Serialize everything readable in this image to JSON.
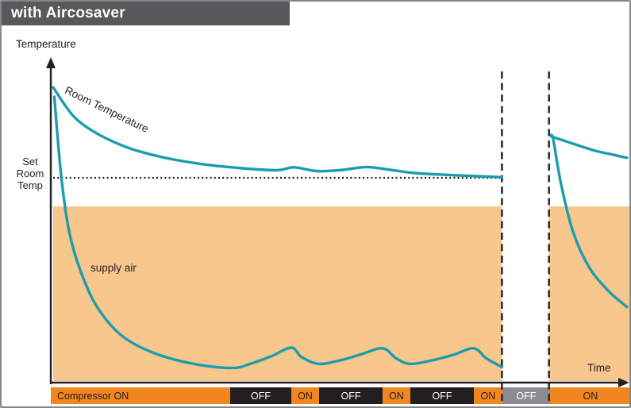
{
  "title": "with Aircosaver",
  "labels": {
    "y_axis": "Temperature",
    "x_axis": "Time",
    "set_point": "Set\nRoom\nTemp",
    "room_series": "Room Temperature",
    "supply_series": "supply air"
  },
  "colors": {
    "curve_teal": "#1B9DAD",
    "cooling_fill": "#F7C78E",
    "compressor_on": "#F0861F",
    "compressor_off": "#231F20",
    "compressor_idle": "#8A8D90",
    "titlebar_bg": "#57585A",
    "axis": "#231F20"
  },
  "chart_data": {
    "type": "line",
    "title": "with Aircosaver",
    "xlabel": "Time",
    "ylabel": "Temperature",
    "axis_note": "qualitative axes, no numeric ticks; t and T are 0-100 relative units",
    "set_point": {
      "label": "Set Room Temp",
      "T": 64.5,
      "t_range": [
        0,
        78.2
      ]
    },
    "cooling_zone": {
      "top_T": 55.5,
      "t_regions": [
        [
          0,
          78.2
        ],
        [
          86.4,
          100.4
        ]
      ]
    },
    "interruptions_t": [
      78.2,
      86.4
    ],
    "series": [
      {
        "name": "Room Temperature",
        "segments": [
          [
            [
              0,
              93
            ],
            [
              3.5,
              84
            ],
            [
              7.6,
              78.5
            ],
            [
              13,
              74
            ],
            [
              19,
              71
            ],
            [
              26,
              68.8
            ],
            [
              33,
              67.5
            ],
            [
              39,
              66.9
            ],
            [
              42,
              67.8
            ],
            [
              46,
              66.6
            ],
            [
              50.5,
              67.0
            ],
            [
              54.5,
              67.9
            ],
            [
              58,
              67.2
            ],
            [
              63,
              66.0
            ],
            [
              69,
              65.4
            ],
            [
              74,
              65.0
            ],
            [
              78.2,
              64.7
            ]
          ],
          [
            [
              86.8,
              77.5
            ],
            [
              89,
              76.2
            ],
            [
              91,
              75.0
            ],
            [
              94.5,
              73.0
            ],
            [
              97.5,
              71.8
            ],
            [
              100,
              70.8
            ]
          ]
        ]
      },
      {
        "name": "supply air",
        "segments": [
          [
            [
              0.2,
              90
            ],
            [
              1.4,
              65
            ],
            [
              2.8,
              47.5
            ],
            [
              4.8,
              35
            ],
            [
              7.6,
              24
            ],
            [
              11.8,
              15
            ],
            [
              17.3,
              9.5
            ],
            [
              24.2,
              6
            ],
            [
              31.1,
              4.6
            ],
            [
              34.5,
              6
            ],
            [
              38,
              8.3
            ],
            [
              41.5,
              11
            ],
            [
              43.3,
              8
            ],
            [
              46.3,
              5.9
            ],
            [
              50,
              7
            ],
            [
              53.5,
              8.8
            ],
            [
              57.4,
              10.8
            ],
            [
              59.8,
              7.6
            ],
            [
              62.2,
              5.9
            ],
            [
              66,
              7
            ],
            [
              69.8,
              8.8
            ],
            [
              73.3,
              10.8
            ],
            [
              75.5,
              7.6
            ],
            [
              78.2,
              4.9
            ]
          ],
          [
            [
              86.8,
              78
            ],
            [
              87.2,
              76
            ],
            [
              88.5,
              62.5
            ],
            [
              90.6,
              47.5
            ],
            [
              93.4,
              36.3
            ],
            [
              96.8,
              28.8
            ],
            [
              100,
              23.8
            ]
          ]
        ]
      }
    ],
    "compressor_timeline": [
      {
        "label": "Compressor ON",
        "state": "on",
        "width_pct": 30.92,
        "align": "left"
      },
      {
        "label": "OFF",
        "state": "off",
        "width_pct": 10.53
      },
      {
        "label": "ON",
        "state": "on",
        "width_pct": 4.79
      },
      {
        "label": "OFF",
        "state": "off",
        "width_pct": 10.94
      },
      {
        "label": "ON",
        "state": "on",
        "width_pct": 4.79
      },
      {
        "label": "OFF",
        "state": "off",
        "width_pct": 10.94
      },
      {
        "label": "ON",
        "state": "on",
        "width_pct": 4.92
      },
      {
        "label": "OFF",
        "state": "idle",
        "width_pct": 8.21
      },
      {
        "label": "ON",
        "state": "on",
        "width_pct": 13.96
      }
    ]
  }
}
